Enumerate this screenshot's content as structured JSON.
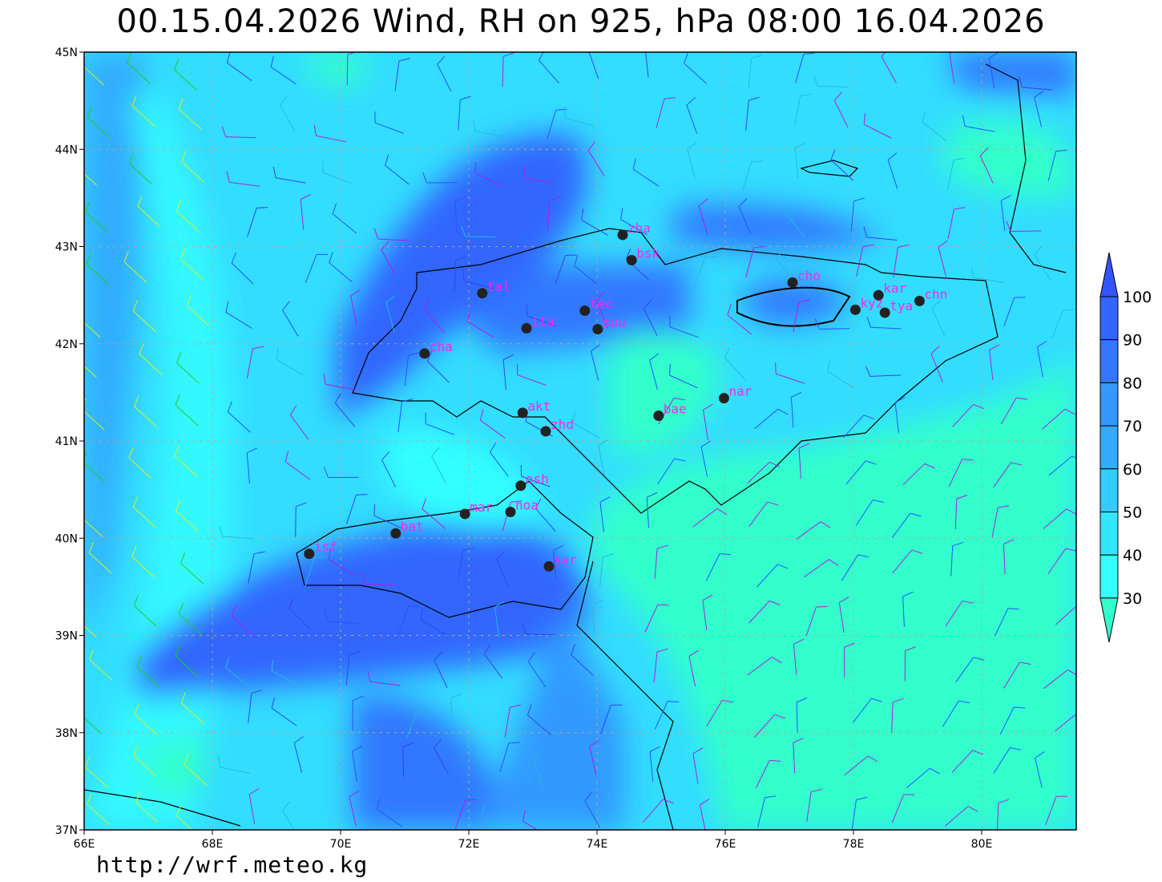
{
  "title": "00.15.04.2026 Wind, RH on 925, hPa 08:00 16.04.2026",
  "footer": "http://wrf.meteo.kg",
  "map": {
    "lon_range": [
      66,
      81.5
    ],
    "lat_range": [
      37,
      45
    ],
    "lon_ticks": [
      "66E",
      "68E",
      "70E",
      "72E",
      "74E",
      "76E",
      "78E",
      "80E"
    ],
    "lat_ticks": [
      "45N",
      "44N",
      "43N",
      "42N",
      "41N",
      "40N",
      "39N",
      "38N",
      "37N"
    ],
    "field": "RH",
    "level_hPa": 925,
    "overlay": "wind barbs"
  },
  "colorbar": {
    "labels": [
      "100",
      "90",
      "80",
      "70",
      "60",
      "50",
      "40",
      "30"
    ],
    "colors": [
      "#3355ff",
      "#3366ff",
      "#3377ff",
      "#3399ff",
      "#33aaff",
      "#33ccff",
      "#33e6ff",
      "#33ffff",
      "#33ffcc"
    ]
  },
  "stations": [
    {
      "id": "zha",
      "lon": 74.4,
      "lat": 43.12
    },
    {
      "id": "bsk",
      "lon": 74.54,
      "lat": 42.86
    },
    {
      "id": "tal",
      "lon": 72.21,
      "lat": 42.52
    },
    {
      "id": "teo",
      "lon": 73.81,
      "lat": 42.34
    },
    {
      "id": "ita",
      "lon": 72.9,
      "lat": 42.16
    },
    {
      "id": "suu",
      "lon": 74.01,
      "lat": 42.15
    },
    {
      "id": "cha",
      "lon": 71.31,
      "lat": 41.9
    },
    {
      "id": "akt",
      "lon": 72.84,
      "lat": 41.29
    },
    {
      "id": "zhd",
      "lon": 73.2,
      "lat": 41.1
    },
    {
      "id": "bae",
      "lon": 74.96,
      "lat": 41.26
    },
    {
      "id": "nar",
      "lon": 75.98,
      "lat": 41.44
    },
    {
      "id": "cho",
      "lon": 77.05,
      "lat": 42.63
    },
    {
      "id": "kar",
      "lon": 78.39,
      "lat": 42.5
    },
    {
      "id": "kyz",
      "lon": 78.03,
      "lat": 42.35
    },
    {
      "id": "tya",
      "lon": 78.49,
      "lat": 42.32
    },
    {
      "id": "chn",
      "lon": 79.03,
      "lat": 42.44
    },
    {
      "id": "osh",
      "lon": 72.81,
      "lat": 40.54
    },
    {
      "id": "mar",
      "lon": 71.94,
      "lat": 40.25
    },
    {
      "id": "noa",
      "lon": 72.65,
      "lat": 40.27
    },
    {
      "id": "bat",
      "lon": 70.86,
      "lat": 40.05
    },
    {
      "id": "isf",
      "lon": 69.51,
      "lat": 39.84
    },
    {
      "id": "sar",
      "lon": 73.25,
      "lat": 39.71
    }
  ]
}
